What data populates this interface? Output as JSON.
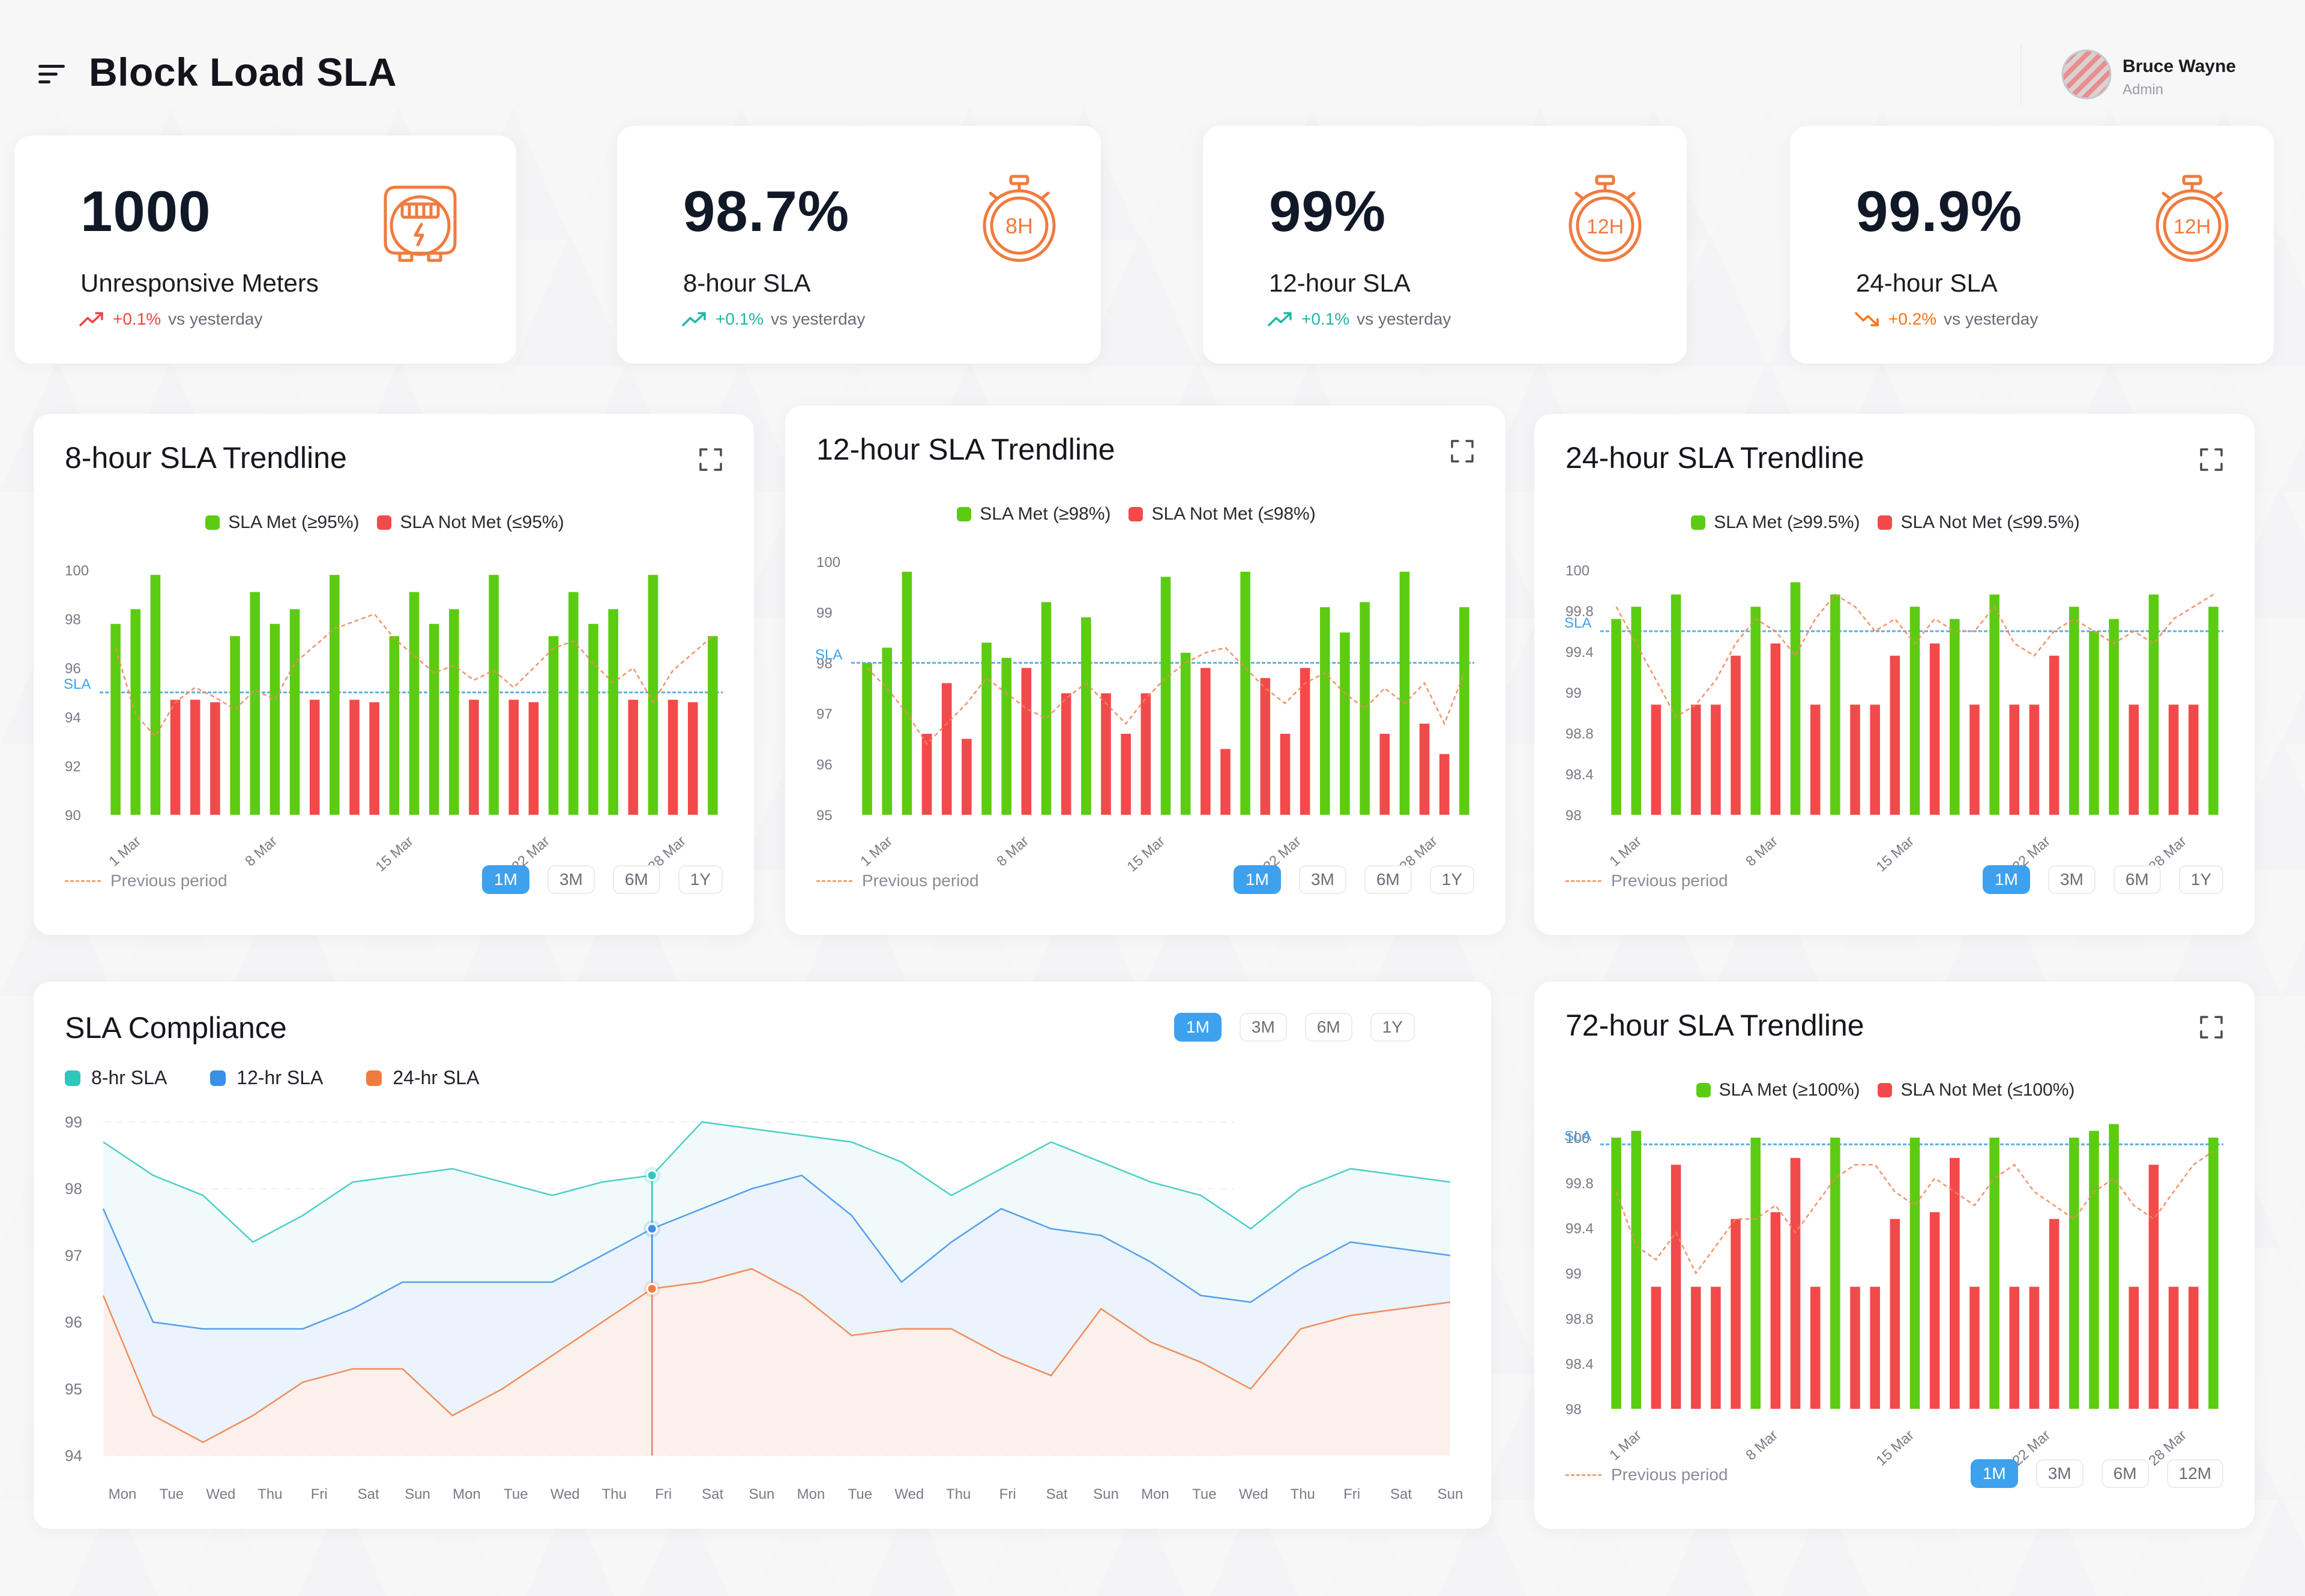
{
  "header": {
    "title": "Block Load SLA",
    "user": {
      "name": "Bruce Wayne",
      "role": "Admin"
    }
  },
  "kpis": [
    {
      "value": "1000",
      "label": "Unresponsive Meters",
      "delta": "+0.1%",
      "delta_suffix": "vs yesterday",
      "delta_direction": "up",
      "delta_color": "#ef4444",
      "icon": "meter-icon"
    },
    {
      "value": "98.7%",
      "label": "8-hour SLA",
      "delta": "+0.1%",
      "delta_suffix": "vs yesterday",
      "delta_direction": "up",
      "delta_color": "#1fb8a4",
      "icon": "stopwatch-8h-icon",
      "icon_text": "8H"
    },
    {
      "value": "99%",
      "label": "12-hour SLA",
      "delta": "+0.1%",
      "delta_suffix": "vs yesterday",
      "delta_direction": "up",
      "delta_color": "#1fb8a4",
      "icon": "stopwatch-12h-icon",
      "icon_text": "12H"
    },
    {
      "value": "99.9%",
      "label": "24-hour SLA",
      "delta": "+0.2%",
      "delta_suffix": "vs yesterday",
      "delta_direction": "down",
      "delta_color": "#f97316",
      "icon": "stopwatch-12h-icon",
      "icon_text": "12H"
    }
  ],
  "colors": {
    "accent_orange": "#f07b3f",
    "met_green": "#5ccc12",
    "not_met_red": "#f24a4a",
    "sla_line": "#5bb0e0",
    "active_range": "#3ea1ee"
  },
  "trend_charts": [
    {
      "title": "8-hour SLA Trendline",
      "legend_met": "SLA Met (≥95%)",
      "legend_not_met": "SLA Not Met (≤95%)",
      "sla_label": "SLA",
      "prev_label": "Previous period",
      "ranges": [
        "1M",
        "3M",
        "6M",
        "1Y"
      ],
      "active_range": "1M",
      "chart_data": {
        "type": "bar",
        "x_ticks": [
          "1 Mar",
          "8 Mar",
          "15 Mar",
          "22 Mar",
          "28 Mar"
        ],
        "y_ticks": [
          "100",
          "98",
          "96",
          "94",
          "92",
          "90"
        ],
        "ylim": [
          90,
          100
        ],
        "sla": 95,
        "values": [
          97.8,
          98.4,
          99.8,
          94.7,
          94.7,
          94.6,
          97.3,
          99.1,
          97.8,
          98.4,
          94.7,
          99.8,
          94.7,
          94.6,
          97.3,
          99.1,
          97.8,
          98.4,
          94.7,
          99.8,
          94.7,
          94.6,
          97.3,
          99.1,
          97.8,
          98.4,
          94.7,
          99.8,
          94.7,
          94.6,
          97.3
        ],
        "previous": [
          96.8,
          94.1,
          93.2,
          94.6,
          95.2,
          94.8,
          94.3,
          95.1,
          94.7,
          96.2,
          96.9,
          97.6,
          97.9,
          98.2,
          97.2,
          96.5,
          95.8,
          96.1,
          95.5,
          95.9,
          95.2,
          96.0,
          96.8,
          97.1,
          96.2,
          95.4,
          96.0,
          94.6,
          95.9,
          96.6,
          97.3
        ]
      }
    },
    {
      "title": "12-hour SLA Trendline",
      "legend_met": "SLA Met (≥98%)",
      "legend_not_met": "SLA Not Met (≤98%)",
      "sla_label": "SLA",
      "prev_label": "Previous period",
      "ranges": [
        "1M",
        "3M",
        "6M",
        "1Y"
      ],
      "active_range": "1M",
      "chart_data": {
        "type": "bar",
        "x_ticks": [
          "1 Mar",
          "8 Mar",
          "15 Mar",
          "22 Mar",
          "28 Mar"
        ],
        "y_ticks": [
          "100",
          "99",
          "98",
          "97",
          "96",
          "95"
        ],
        "ylim": [
          95,
          100
        ],
        "sla": 98,
        "values": [
          98.0,
          98.3,
          99.8,
          96.6,
          97.6,
          96.5,
          98.4,
          98.1,
          97.9,
          99.2,
          97.4,
          98.9,
          97.4,
          96.6,
          97.4,
          99.7,
          98.2,
          97.9,
          96.3,
          99.8,
          97.7,
          96.6,
          97.9,
          99.1,
          98.6,
          99.2,
          96.6,
          99.8,
          96.8,
          96.2,
          99.1
        ],
        "previous": [
          97.9,
          97.5,
          97.0,
          96.4,
          96.8,
          97.2,
          97.7,
          97.4,
          97.1,
          96.9,
          97.3,
          97.6,
          97.2,
          96.8,
          97.3,
          97.7,
          98.0,
          98.2,
          98.3,
          97.9,
          97.5,
          97.2,
          97.6,
          97.8,
          97.4,
          97.1,
          97.5,
          97.2,
          97.6,
          96.8,
          97.8
        ]
      }
    },
    {
      "title": "24-hour SLA Trendline",
      "legend_met": "SLA Met (≥99.5%)",
      "legend_not_met": "SLA Not Met (≤99.5%)",
      "sla_label": "SLA",
      "prev_label": "Previous period",
      "ranges": [
        "1M",
        "3M",
        "6M",
        "1Y"
      ],
      "active_range": "1M",
      "chart_data": {
        "type": "bar",
        "x_ticks": [
          "1 Mar",
          "8 Mar",
          "15 Mar",
          "22 Mar",
          "28 Mar"
        ],
        "y_ticks": [
          "100",
          "99.8",
          "99.4",
          "99",
          "98.8",
          "98.4",
          "98"
        ],
        "ylim": [
          98,
          100
        ],
        "sla": 99.5,
        "values": [
          99.6,
          99.7,
          98.9,
          99.8,
          98.9,
          98.9,
          99.3,
          99.7,
          99.4,
          99.9,
          98.9,
          99.8,
          98.9,
          98.9,
          99.3,
          99.7,
          99.4,
          99.6,
          98.9,
          99.8,
          98.9,
          98.9,
          99.3,
          99.7,
          99.5,
          99.6,
          98.9,
          99.8,
          98.9,
          98.9,
          99.7
        ],
        "previous": [
          99.7,
          99.4,
          99.1,
          98.8,
          98.9,
          99.1,
          99.4,
          99.6,
          99.5,
          99.3,
          99.6,
          99.8,
          99.7,
          99.5,
          99.6,
          99.4,
          99.6,
          99.5,
          99.5,
          99.7,
          99.4,
          99.3,
          99.5,
          99.6,
          99.5,
          99.4,
          99.5,
          99.4,
          99.6,
          99.7,
          99.8
        ]
      }
    },
    {
      "title": "72-hour SLA Trendline",
      "legend_met": "SLA Met (≥100%)",
      "legend_not_met": "SLA Not Met (≤100%)",
      "sla_label": "SLA",
      "prev_label": "Previous period",
      "ranges": [
        "1M",
        "3M",
        "6M",
        "12M"
      ],
      "active_range": "1M",
      "chart_data": {
        "type": "bar",
        "x_ticks": [
          "1 Mar",
          "8 Mar",
          "15 Mar",
          "22 Mar",
          "28 Mar"
        ],
        "y_ticks": [
          "100",
          "99.8",
          "99.4",
          "99",
          "98.8",
          "98.4",
          "98"
        ],
        "ylim": [
          98,
          100
        ],
        "sla": 99.95,
        "values": [
          100.0,
          100.05,
          98.9,
          99.8,
          98.9,
          98.9,
          99.4,
          100.0,
          99.45,
          99.85,
          98.9,
          100.0,
          98.9,
          98.9,
          99.4,
          100.0,
          99.45,
          99.85,
          98.9,
          100.0,
          98.9,
          98.9,
          99.4,
          100.0,
          100.05,
          100.1,
          98.9,
          99.8,
          98.9,
          98.9,
          100.0
        ],
        "previous": [
          99.6,
          99.2,
          99.1,
          99.3,
          99.0,
          99.2,
          99.4,
          99.4,
          99.5,
          99.3,
          99.5,
          99.7,
          99.8,
          99.8,
          99.6,
          99.5,
          99.7,
          99.6,
          99.5,
          99.7,
          99.8,
          99.6,
          99.5,
          99.4,
          99.6,
          99.7,
          99.5,
          99.4,
          99.6,
          99.8,
          99.9
        ]
      }
    }
  ],
  "compliance": {
    "title": "SLA Compliance",
    "ranges": [
      "1M",
      "3M",
      "6M",
      "1Y"
    ],
    "active_range": "1M",
    "legend": [
      "8-hr SLA",
      "12-hr SLA",
      "24-hr SLA"
    ],
    "chart_data": {
      "type": "area",
      "x": [
        "Mon",
        "Tue",
        "Wed",
        "Thu",
        "Fri",
        "Sat",
        "Sun",
        "Mon",
        "Tue",
        "Wed",
        "Thu",
        "Fri",
        "Sat",
        "Sun",
        "Mon",
        "Tue",
        "Wed",
        "Thu",
        "Fri",
        "Sat",
        "Sun",
        "Mon",
        "Tue",
        "Wed",
        "Thu",
        "Fri",
        "Sat",
        "Sun"
      ],
      "y_ticks": [
        "99",
        "98",
        "97",
        "96",
        "95",
        "94"
      ],
      "ylim": [
        94,
        99
      ],
      "highlight_index": 11,
      "series": [
        {
          "name": "8-hr SLA",
          "color": "#2fc7bd",
          "values": [
            98.7,
            98.2,
            97.9,
            97.2,
            97.6,
            98.1,
            98.2,
            98.3,
            98.1,
            97.9,
            98.1,
            98.2,
            99.0,
            98.9,
            98.8,
            98.7,
            98.4,
            97.9,
            98.3,
            98.7,
            98.4,
            98.1,
            97.9,
            97.4,
            98.0,
            98.3,
            98.2,
            98.1
          ]
        },
        {
          "name": "12-hr SLA",
          "color": "#3b8fe6",
          "values": [
            97.7,
            96.0,
            95.9,
            95.9,
            95.9,
            96.2,
            96.6,
            96.6,
            96.6,
            96.6,
            97.0,
            97.4,
            97.7,
            98.0,
            98.2,
            97.6,
            96.6,
            97.2,
            97.7,
            97.4,
            97.3,
            96.9,
            96.4,
            96.3,
            96.8,
            97.2,
            97.1,
            97.0
          ]
        },
        {
          "name": "24-hr SLA",
          "color": "#f07b3f",
          "values": [
            96.4,
            94.6,
            94.2,
            94.6,
            95.1,
            95.3,
            95.3,
            94.6,
            95.0,
            95.5,
            96.0,
            96.5,
            96.6,
            96.8,
            96.4,
            95.8,
            95.9,
            95.9,
            95.5,
            95.2,
            96.2,
            95.7,
            95.4,
            95.0,
            95.9,
            96.1,
            96.2,
            96.3
          ]
        }
      ]
    }
  }
}
